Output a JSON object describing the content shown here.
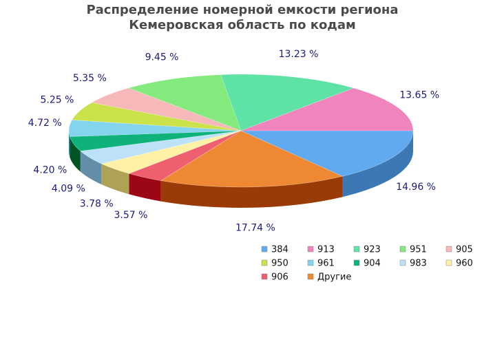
{
  "chart_data": {
    "type": "pie",
    "title_lines": [
      "Распределение номерной емкости региона",
      "Кемеровская область по кодам"
    ],
    "slices": [
      {
        "name": "384",
        "value": 14.96,
        "label": "14.96 %",
        "color": "#62aaf0",
        "side": "#3c78b4"
      },
      {
        "name": "Другие",
        "value": 17.74,
        "label": "17.74 %",
        "color": "#ee8833",
        "side": "#9a3a06"
      },
      {
        "name": "906",
        "value": 3.57,
        "label": "3.57 %",
        "color": "#ee6070",
        "side": "#9c0716"
      },
      {
        "name": "960",
        "value": 3.78,
        "label": "3.78 %",
        "color": "#fff2a6",
        "side": "#ada255"
      },
      {
        "name": "983",
        "value": 4.09,
        "label": "4.09 %",
        "color": "#bde2f8",
        "side": "#628eaa"
      },
      {
        "name": "904",
        "value": 4.2,
        "label": "4.20 %",
        "color": "#0eb27a",
        "side": "#025424"
      },
      {
        "name": "961",
        "value": 4.72,
        "label": "4.72 %",
        "color": "#84d4ee",
        "side": "#2e7e9a"
      },
      {
        "name": "950",
        "value": 5.25,
        "label": "5.25 %",
        "color": "#cce24a",
        "side": "#7a8e08"
      },
      {
        "name": "905",
        "value": 5.35,
        "label": "5.35 %",
        "color": "#f6b8b8",
        "side": "#b07070"
      },
      {
        "name": "951",
        "value": 9.45,
        "label": "9.45 %",
        "color": "#84ea7e",
        "side": "#4aa044"
      },
      {
        "name": "923",
        "value": 13.23,
        "label": "13.23 %",
        "color": "#5ee2a6",
        "side": "#2a9e6a"
      },
      {
        "name": "913",
        "value": 13.65,
        "label": "13.65 %",
        "color": "#f084bc",
        "side": "#a44e7c"
      }
    ],
    "legend": {
      "placement": "bottom-right",
      "items": [
        "384",
        "913",
        "923",
        "951",
        "905",
        "950",
        "961",
        "904",
        "983",
        "960",
        "906",
        "Другие"
      ]
    }
  }
}
